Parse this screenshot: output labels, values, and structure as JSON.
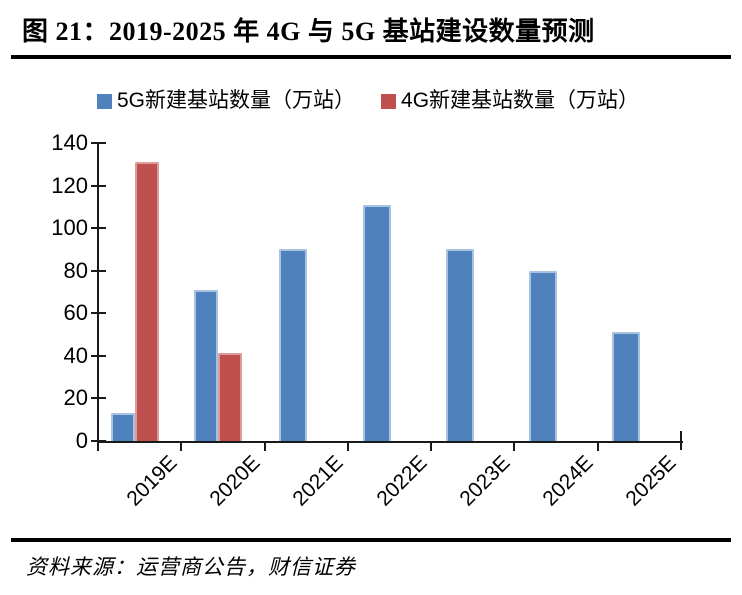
{
  "page": {
    "title": "图 21：2019-2025 年 4G 与 5G 基站建设数量预测",
    "source": "资料来源：运营商公告，财信证券"
  },
  "chart_data": {
    "type": "bar",
    "title": "图 21：2019-2025 年 4G 与 5G 基站建设数量预测",
    "categories": [
      "2019E",
      "2020E",
      "2021E",
      "2022E",
      "2023E",
      "2024E",
      "2025E"
    ],
    "series": [
      {
        "name": "5G新建基站数量（万站）",
        "color": "#4F81BD",
        "edge_color": "#A8C2E1",
        "values": [
          13,
          71,
          90,
          111,
          90,
          80,
          51
        ]
      },
      {
        "name": "4G新建基站数量（万站）",
        "color": "#C0504D",
        "edge_color": "#DB9C9A",
        "values": [
          131,
          41,
          null,
          null,
          null,
          null,
          null
        ]
      }
    ],
    "xlabel": "",
    "ylabel": "",
    "ylim": [
      0,
      140
    ],
    "yticks": [
      0,
      20,
      40,
      60,
      80,
      100,
      120,
      140
    ],
    "legend_position": "top",
    "grid": false,
    "axis_color": "#1a1a1a",
    "source": "资料来源：运营商公告，财信证券"
  }
}
